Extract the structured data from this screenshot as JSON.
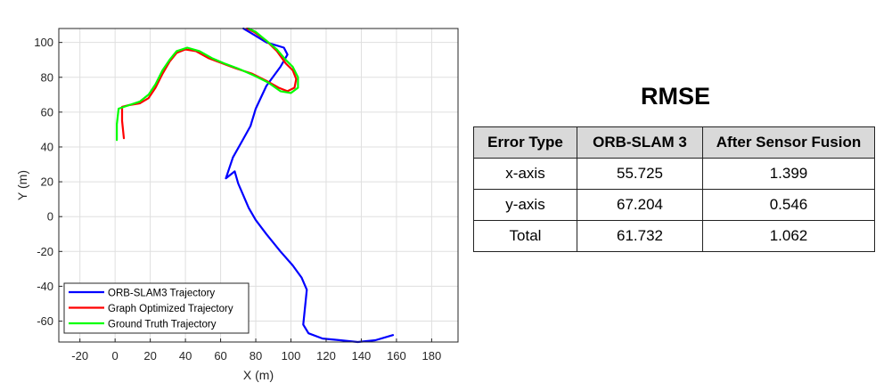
{
  "chart_data": {
    "type": "line",
    "xlabel": "X (m)",
    "ylabel": "Y (m)",
    "xlim": [
      -32,
      195
    ],
    "ylim": [
      -72,
      108
    ],
    "xticks": [
      -20,
      0,
      20,
      40,
      60,
      80,
      100,
      120,
      140,
      160,
      180
    ],
    "yticks": [
      -60,
      -40,
      -20,
      0,
      20,
      40,
      60,
      80,
      100
    ],
    "grid": true,
    "legend_position": "bottom-left",
    "series": [
      {
        "name": "ORB-SLAM3 Trajectory",
        "color": "#0000ff",
        "points": [
          [
            73,
            108
          ],
          [
            78,
            105
          ],
          [
            86,
            100
          ],
          [
            96,
            97
          ],
          [
            98,
            93
          ],
          [
            94,
            86
          ],
          [
            86,
            75
          ],
          [
            80,
            62
          ],
          [
            77,
            52
          ],
          [
            72,
            43
          ],
          [
            67,
            34
          ],
          [
            63,
            22
          ],
          [
            68,
            26
          ],
          [
            70,
            19
          ],
          [
            73,
            12
          ],
          [
            76,
            5
          ],
          [
            80,
            -2
          ],
          [
            86,
            -10
          ],
          [
            94,
            -20
          ],
          [
            101,
            -28
          ],
          [
            106,
            -35
          ],
          [
            109,
            -42
          ],
          [
            108,
            -52
          ],
          [
            107,
            -62
          ],
          [
            110,
            -67
          ],
          [
            118,
            -70
          ],
          [
            128,
            -71
          ],
          [
            138,
            -72
          ],
          [
            148,
            -71
          ],
          [
            158,
            -68
          ]
        ]
      },
      {
        "name": "Graph Optimized Trajectory",
        "color": "#ff0000",
        "points": [
          [
            5,
            45
          ],
          [
            4,
            55
          ],
          [
            4,
            63
          ],
          [
            8,
            64
          ],
          [
            14,
            65
          ],
          [
            19,
            68
          ],
          [
            23,
            74
          ],
          [
            27,
            82
          ],
          [
            31,
            89
          ],
          [
            35,
            94
          ],
          [
            40,
            96
          ],
          [
            46,
            95
          ],
          [
            53,
            91
          ],
          [
            61,
            88
          ],
          [
            69,
            85
          ],
          [
            78,
            82
          ],
          [
            86,
            78
          ],
          [
            93,
            74
          ],
          [
            98,
            72
          ],
          [
            102,
            74
          ],
          [
            103,
            79
          ],
          [
            101,
            84
          ],
          [
            97,
            88
          ],
          [
            92,
            95
          ],
          [
            86,
            101
          ],
          [
            79,
            106
          ],
          [
            75,
            108
          ]
        ]
      },
      {
        "name": "Ground Truth Trajectory",
        "color": "#00ff00",
        "points": [
          [
            1,
            44
          ],
          [
            1,
            53
          ],
          [
            2,
            62
          ],
          [
            8,
            64
          ],
          [
            14,
            66
          ],
          [
            19,
            70
          ],
          [
            23,
            76
          ],
          [
            27,
            84
          ],
          [
            31,
            90
          ],
          [
            35,
            95
          ],
          [
            41,
            97
          ],
          [
            48,
            95
          ],
          [
            55,
            91
          ],
          [
            62,
            88
          ],
          [
            70,
            85
          ],
          [
            79,
            81
          ],
          [
            87,
            77
          ],
          [
            94,
            72
          ],
          [
            100,
            71
          ],
          [
            104,
            74
          ],
          [
            104,
            80
          ],
          [
            101,
            86
          ],
          [
            97,
            90
          ],
          [
            92,
            96
          ],
          [
            86,
            101
          ],
          [
            80,
            106
          ],
          [
            76,
            108
          ]
        ]
      }
    ]
  },
  "rmse": {
    "title": "RMSE",
    "headers": [
      "Error Type",
      "ORB-SLAM 3",
      "After Sensor Fusion"
    ],
    "rows": [
      [
        "x-axis",
        "55.725",
        "1.399"
      ],
      [
        "y-axis",
        "67.204",
        "0.546"
      ],
      [
        "Total",
        "61.732",
        "1.062"
      ]
    ]
  }
}
